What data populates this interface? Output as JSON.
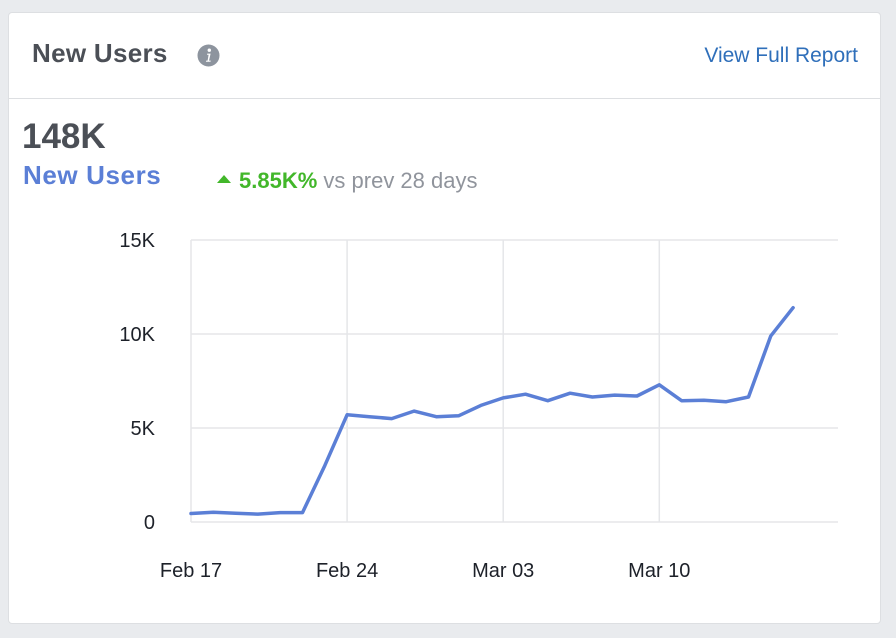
{
  "card": {
    "title": "New Users",
    "report_link": "View Full Report"
  },
  "summary": {
    "total": "148K",
    "label": "New Users",
    "change": "5.85K%",
    "comparison": "vs prev 28 days"
  },
  "colors": {
    "line": "#5b7fd6",
    "positive": "#42b72a",
    "link": "#2f6fba",
    "grid": "#e5e6e9"
  },
  "chart_data": {
    "type": "line",
    "xlabel": "",
    "ylabel": "",
    "ylim": [
      0,
      15000
    ],
    "y_ticks": [
      0,
      5000,
      10000,
      15000
    ],
    "y_tick_labels": [
      "0",
      "5K",
      "10K",
      "15K"
    ],
    "x_tick_labels": [
      "Feb 17",
      "Feb 24",
      "Mar 03",
      "Mar 10"
    ],
    "grid": true,
    "legend": "none",
    "series": [
      {
        "x": [
          "Feb 17",
          "Feb 18",
          "Feb 19",
          "Feb 20",
          "Feb 21",
          "Feb 22",
          "Feb 23",
          "Feb 24",
          "Feb 25",
          "Feb 26",
          "Feb 27",
          "Feb 28",
          "Mar 01",
          "Mar 02",
          "Mar 03",
          "Mar 04",
          "Mar 05",
          "Mar 06",
          "Mar 07",
          "Mar 08",
          "Mar 09",
          "Mar 10",
          "Mar 11",
          "Mar 12",
          "Mar 13",
          "Mar 14",
          "Mar 15",
          "Mar 16"
        ],
        "values": [
          450,
          520,
          470,
          420,
          500,
          500,
          3000,
          5700,
          5600,
          5500,
          5900,
          5600,
          5650,
          6200,
          6600,
          6800,
          6450,
          6850,
          6650,
          6750,
          6700,
          7300,
          6450,
          6480,
          6400,
          6650,
          9900,
          11400
        ]
      }
    ]
  }
}
